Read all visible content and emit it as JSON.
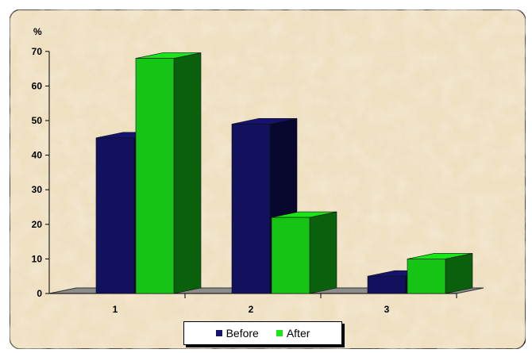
{
  "chart_data": {
    "type": "bar",
    "ylabel": "%",
    "xlabel": "",
    "categories": [
      "1",
      "2",
      "3"
    ],
    "series": [
      {
        "name": "Before",
        "values": [
          45,
          49,
          5
        ],
        "color": "#14146e"
      },
      {
        "name": "After",
        "values": [
          68,
          22,
          10
        ],
        "color": "#19e619"
      }
    ],
    "ylim": [
      0,
      70
    ],
    "yticks": [
      0,
      10,
      20,
      30,
      40,
      50,
      60,
      70
    ],
    "grid": false,
    "legend_position": "bottom",
    "background_color": "#efe0c2",
    "floor_color": "#8c8c8c"
  }
}
